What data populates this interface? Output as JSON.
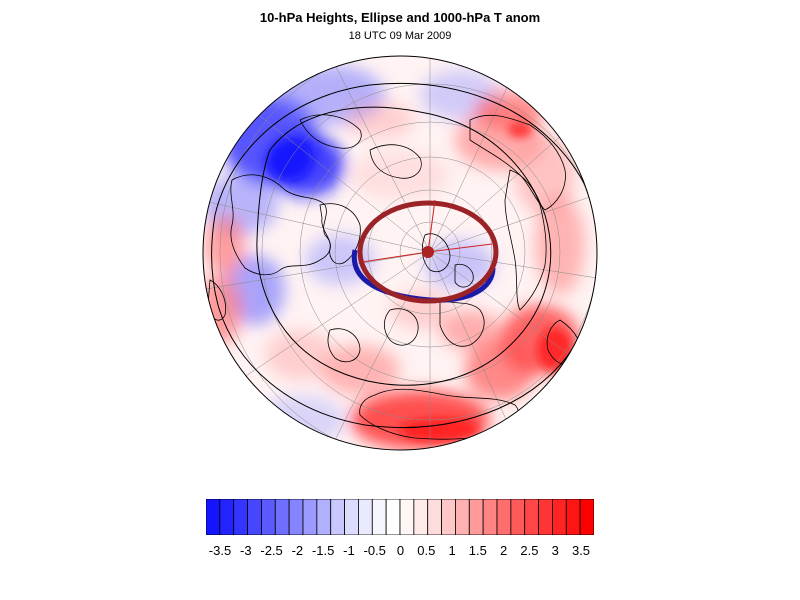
{
  "header": {
    "title": "10-hPa Heights, Ellipse and 1000-hPa T anom",
    "subtitle": "18 UTC 09 Mar 2009"
  },
  "colorbar": {
    "labels": [
      "-3.5",
      "-3",
      "-2.5",
      "-2",
      "-1.5",
      "-1",
      "-0.5",
      "0",
      "0.5",
      "1",
      "1.5",
      "2",
      "2.5",
      "3",
      "3.5"
    ],
    "colors": [
      "#1414ff",
      "#2323ff",
      "#3434ff",
      "#4646ff",
      "#5a5aff",
      "#6e6eff",
      "#8585ff",
      "#9a9aff",
      "#b0b0ff",
      "#c8c8ff",
      "#dcdcff",
      "#eaeaff",
      "#f6f6ff",
      "#ffffff",
      "#fff6f6",
      "#ffeaea",
      "#ffdcdc",
      "#ffc8c8",
      "#ffb0b0",
      "#ff9a9a",
      "#ff8585",
      "#ff6e6e",
      "#ff5a5a",
      "#ff4646",
      "#ff3434",
      "#ff2323",
      "#ff1414",
      "#ff0000"
    ]
  },
  "map": {
    "ellipse_color": "#9b2226",
    "ellipse_blue": "#1a1aaa",
    "center_dot": "#aa2222"
  }
}
